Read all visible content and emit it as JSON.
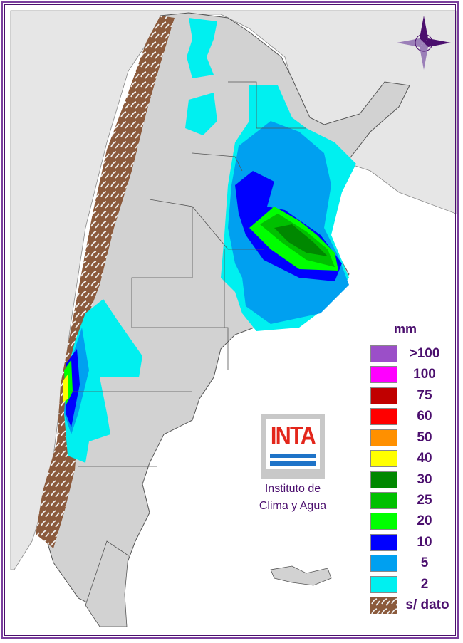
{
  "legend": {
    "unit": "mm",
    "items": [
      {
        "label": ">100",
        "color": "#9b4fc8"
      },
      {
        "label": "100",
        "color": "#ff00ff"
      },
      {
        "label": "75",
        "color": "#c00000"
      },
      {
        "label": "60",
        "color": "#ff0000"
      },
      {
        "label": "50",
        "color": "#ff9000"
      },
      {
        "label": "40",
        "color": "#ffff00"
      },
      {
        "label": "30",
        "color": "#008800"
      },
      {
        "label": "25",
        "color": "#00c000"
      },
      {
        "label": "20",
        "color": "#00ff00"
      },
      {
        "label": "10",
        "color": "#0000ff"
      },
      {
        "label": "5",
        "color": "#00a0f0"
      },
      {
        "label": "2",
        "color": "#00f0f0"
      },
      {
        "label": "s/ dato",
        "color": "#8b5a3c"
      }
    ]
  },
  "logo": {
    "text": "INTA",
    "institute_line1": "Instituto de",
    "institute_line2": "Clima y Agua"
  },
  "compass": "compass-rose-icon"
}
